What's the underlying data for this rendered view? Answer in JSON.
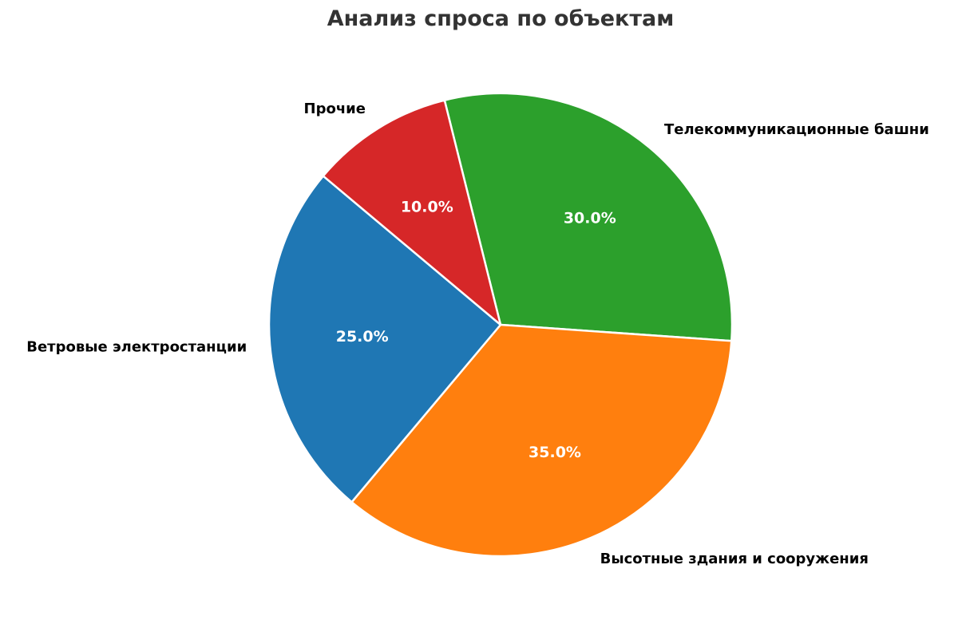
{
  "chart_data": {
    "type": "pie",
    "title": "Анализ спроса по объектам",
    "slices": [
      {
        "label": "Телекоммуникационные башни",
        "value": 30.0,
        "pct_label": "30.0%",
        "color": "#2ca02c"
      },
      {
        "label": "Высотные здания и сооружения",
        "value": 35.0,
        "pct_label": "35.0%",
        "color": "#ff7f0e"
      },
      {
        "label": "Ветровые электростанции",
        "value": 25.0,
        "pct_label": "25.0%",
        "color": "#1f77b4"
      },
      {
        "label": "Прочие",
        "value": 10.0,
        "pct_label": "10.0%",
        "color": "#d62728"
      }
    ],
    "start_angle_deg": 104,
    "direction": "clockwise",
    "wedge_edge_color": "#ffffff",
    "legend": "none"
  }
}
